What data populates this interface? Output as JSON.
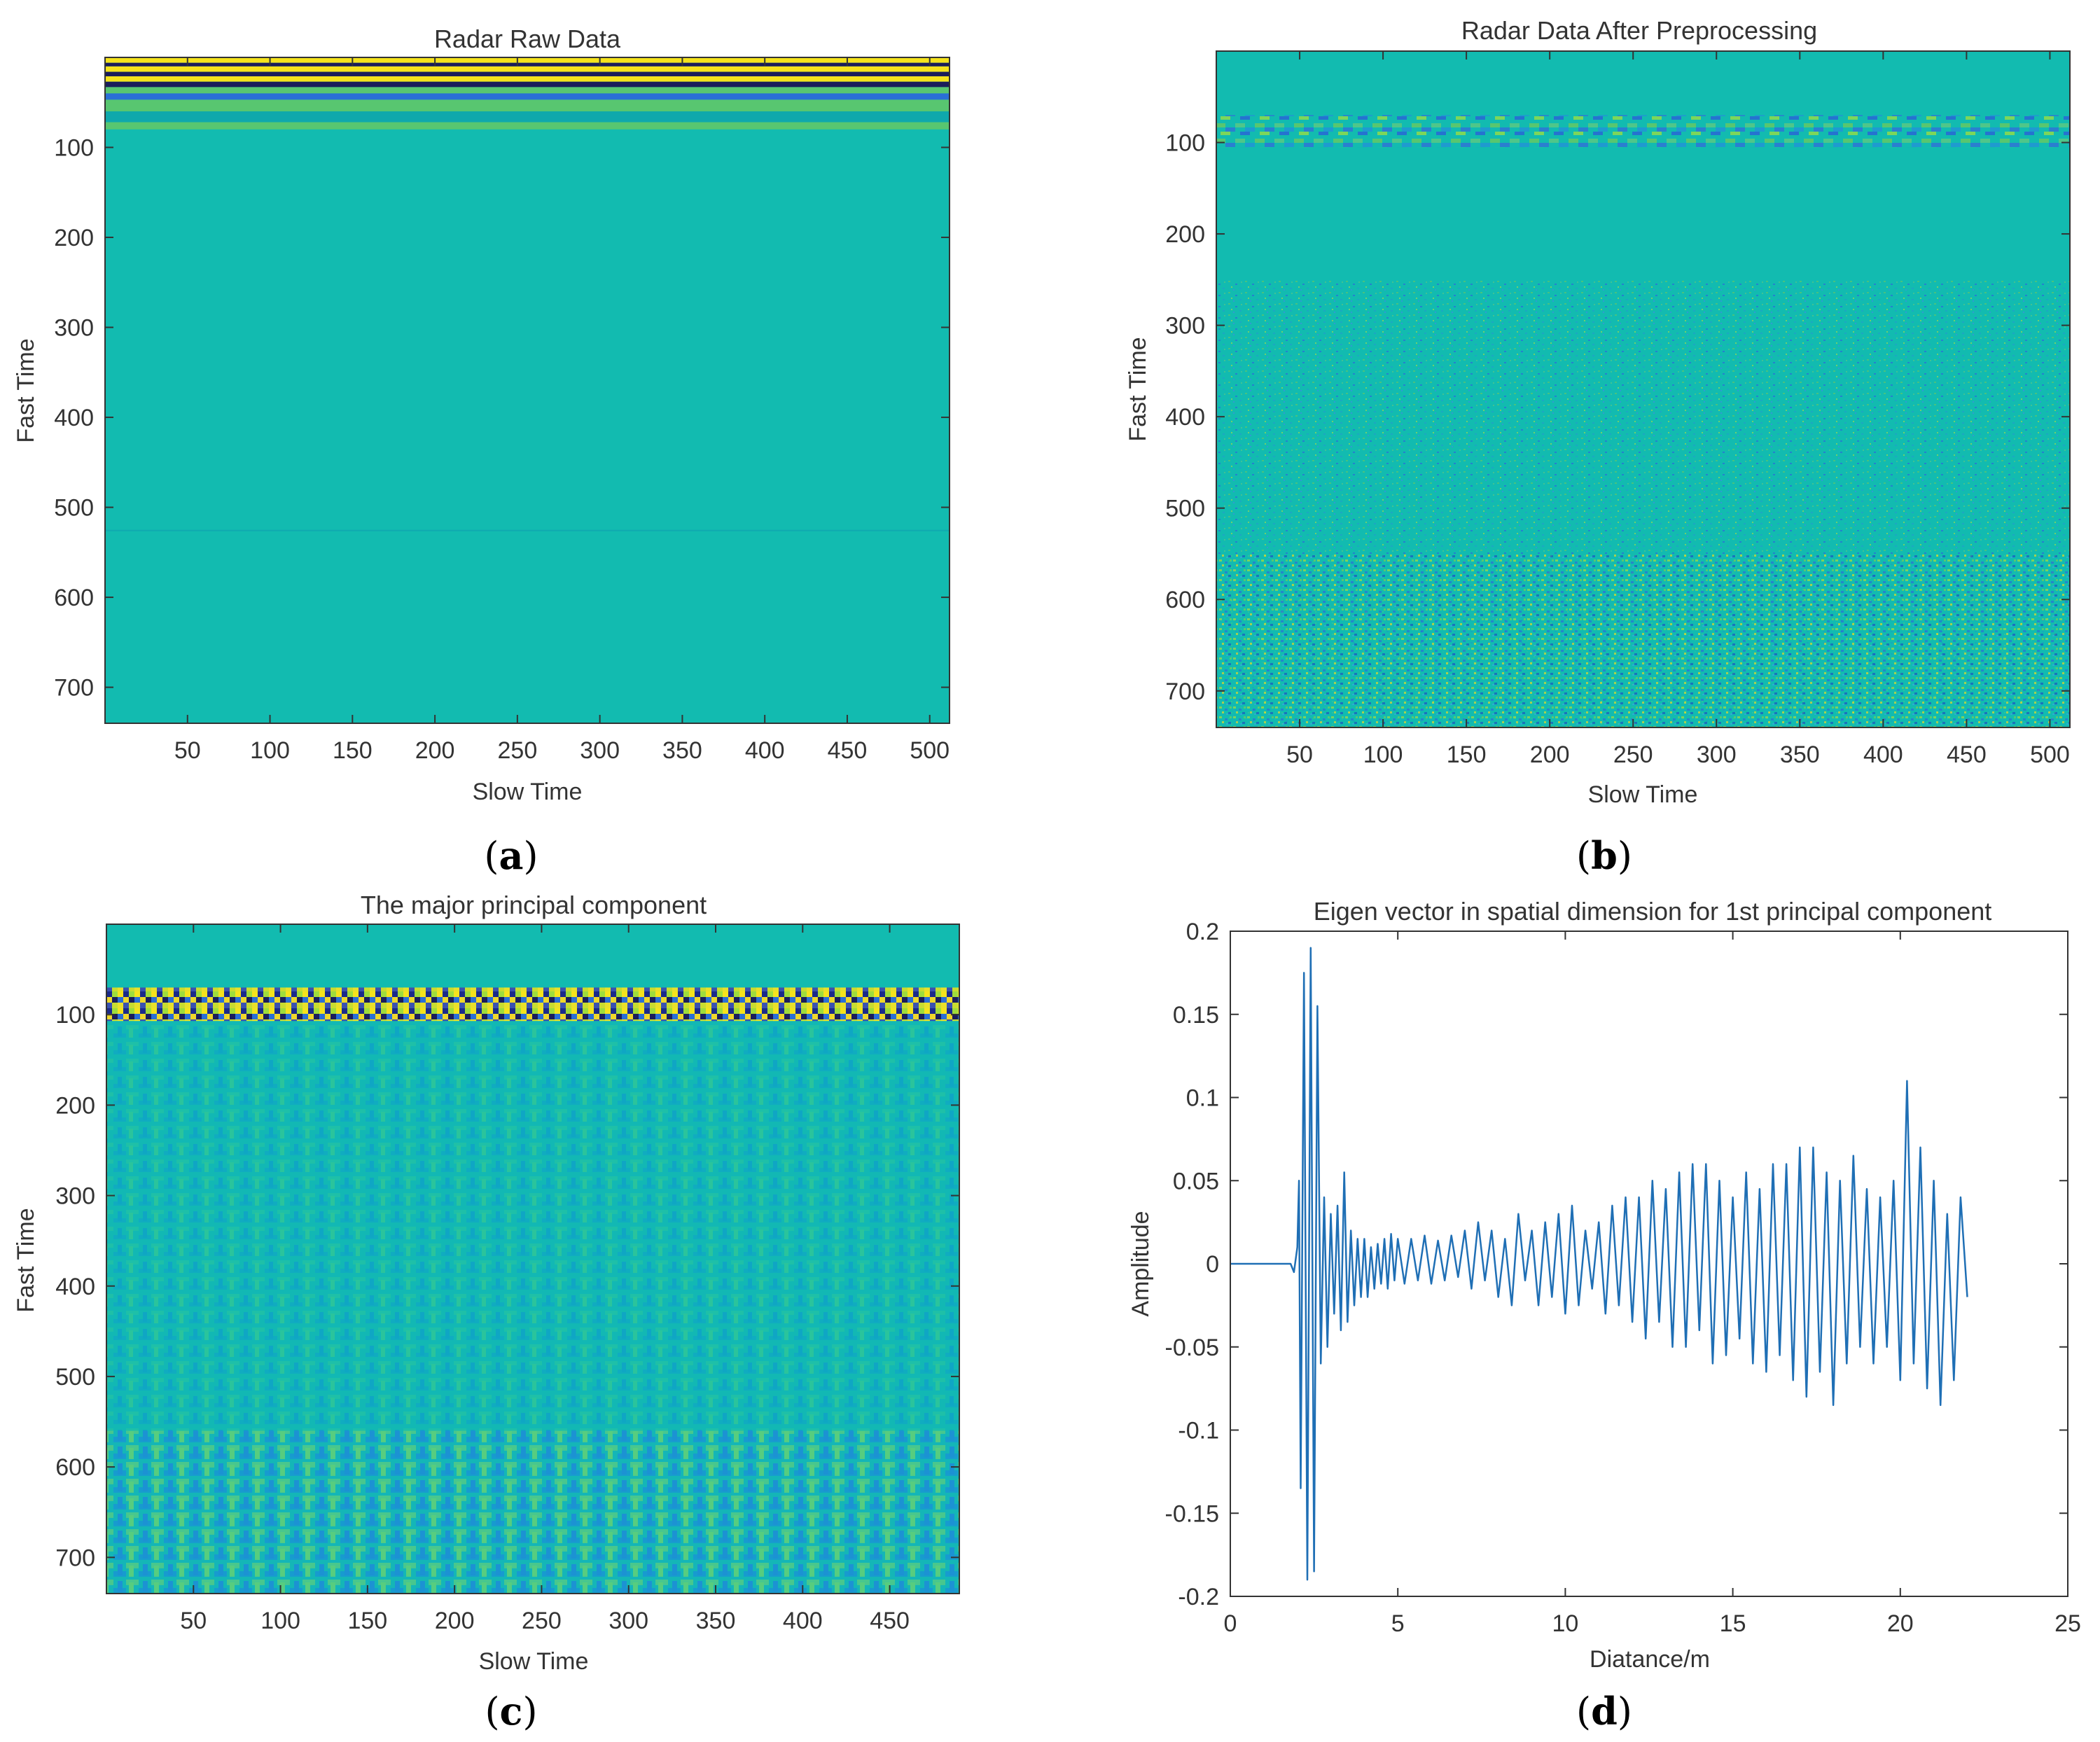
{
  "colors": {
    "teal": "#12bbb0",
    "teal_dark": "#0fa8ac",
    "yellow": "#f5e31c",
    "navy": "#1b1d5a",
    "blue": "#2a6fd6",
    "green": "#58c670",
    "line": "#1f6fb5",
    "axis": "#333333"
  },
  "chart_data": [
    {
      "type": "heatmap",
      "id": "a",
      "title": "Radar Raw Data",
      "xlabel": "Slow Time",
      "ylabel": "Fast Time",
      "xlim": [
        0,
        512
      ],
      "ylim": [
        740,
        0
      ],
      "xticks": [
        50,
        100,
        150,
        200,
        250,
        300,
        350,
        400,
        450,
        500
      ],
      "yticks": [
        100,
        200,
        300,
        400,
        500,
        600,
        700
      ],
      "caption_letter": "a",
      "bands": [
        {
          "from": 0,
          "to": 6,
          "color": "yellow"
        },
        {
          "from": 6,
          "to": 10,
          "color": "navy"
        },
        {
          "from": 10,
          "to": 16,
          "color": "yellow"
        },
        {
          "from": 16,
          "to": 21,
          "color": "navy"
        },
        {
          "from": 21,
          "to": 27,
          "color": "yellow"
        },
        {
          "from": 27,
          "to": 33,
          "color": "navy"
        },
        {
          "from": 33,
          "to": 40,
          "color": "green"
        },
        {
          "from": 40,
          "to": 47,
          "color": "blue"
        },
        {
          "from": 47,
          "to": 60,
          "color": "green"
        },
        {
          "from": 60,
          "to": 72,
          "color": "teal_dark"
        },
        {
          "from": 72,
          "to": 80,
          "color": "green"
        }
      ]
    },
    {
      "type": "heatmap",
      "id": "b",
      "title": "Radar Data After Preprocessing",
      "xlabel": "Slow Time",
      "ylabel": "Fast Time",
      "xlim": [
        0,
        512
      ],
      "ylim": [
        740,
        0
      ],
      "xticks": [
        50,
        100,
        150,
        200,
        250,
        300,
        350,
        400,
        450,
        500
      ],
      "yticks": [
        100,
        200,
        300,
        400,
        500,
        600,
        700
      ],
      "caption_letter": "b",
      "pattern": {
        "band_from": 70,
        "band_to": 105,
        "noise_from": 250,
        "noise_to": 740
      }
    },
    {
      "type": "heatmap",
      "id": "c",
      "title": "The major principal component",
      "xlabel": "Slow Time",
      "ylabel": "Fast Time",
      "xlim": [
        0,
        490
      ],
      "ylim": [
        740,
        0
      ],
      "xticks": [
        50,
        100,
        150,
        200,
        250,
        300,
        350,
        400,
        450
      ],
      "yticks": [
        100,
        200,
        300,
        400,
        500,
        600,
        700
      ],
      "caption_letter": "c",
      "pattern": {
        "band_from": 70,
        "band_to": 107,
        "grid_from": 107,
        "grid_to": 740
      }
    },
    {
      "type": "line",
      "id": "d",
      "title": "Eigen vector in spatial dimension for 1st principal component",
      "xlabel": "Diatance/m",
      "ylabel": "Amplitude",
      "xlim": [
        0,
        25
      ],
      "ylim": [
        -0.2,
        0.2
      ],
      "xticks": [
        0,
        5,
        10,
        15,
        20,
        25
      ],
      "yticks": [
        -0.2,
        -0.15,
        -0.1,
        -0.05,
        0,
        0.05,
        0.1,
        0.15,
        0.2
      ],
      "ytick_labels": [
        "-0.2",
        "-0.15",
        "-0.1",
        "-0.05",
        "0",
        "0.05",
        "0.1",
        "0.15",
        "0.2"
      ],
      "caption_letter": "d",
      "x": [
        0,
        1.8,
        1.9,
        2.0,
        2.05,
        2.1,
        2.2,
        2.3,
        2.4,
        2.5,
        2.6,
        2.7,
        2.8,
        2.9,
        3.0,
        3.1,
        3.2,
        3.3,
        3.4,
        3.5,
        3.6,
        3.7,
        3.8,
        3.9,
        4.0,
        4.1,
        4.2,
        4.3,
        4.4,
        4.5,
        4.6,
        4.7,
        4.8,
        4.9,
        5.0,
        5.2,
        5.4,
        5.6,
        5.8,
        6.0,
        6.2,
        6.4,
        6.6,
        6.8,
        7.0,
        7.2,
        7.4,
        7.6,
        7.8,
        8.0,
        8.2,
        8.4,
        8.6,
        8.8,
        9.0,
        9.2,
        9.4,
        9.6,
        9.8,
        10.0,
        10.2,
        10.4,
        10.6,
        10.8,
        11.0,
        11.2,
        11.4,
        11.6,
        11.8,
        12.0,
        12.2,
        12.4,
        12.6,
        12.8,
        13.0,
        13.2,
        13.4,
        13.6,
        13.8,
        14.0,
        14.2,
        14.4,
        14.6,
        14.8,
        15.0,
        15.2,
        15.4,
        15.6,
        15.8,
        16.0,
        16.2,
        16.4,
        16.6,
        16.8,
        17.0,
        17.2,
        17.4,
        17.6,
        17.8,
        18.0,
        18.2,
        18.4,
        18.6,
        18.8,
        19.0,
        19.2,
        19.4,
        19.6,
        19.8,
        20.0,
        20.2,
        20.4,
        20.6,
        20.8,
        21.0,
        21.2,
        21.4,
        21.6,
        21.8,
        22.0
      ],
      "y": [
        0,
        0,
        -0.005,
        0.01,
        0.05,
        -0.135,
        0.175,
        -0.19,
        0.19,
        -0.185,
        0.155,
        -0.06,
        0.04,
        -0.05,
        0.03,
        -0.03,
        0.035,
        -0.04,
        0.055,
        -0.035,
        0.02,
        -0.025,
        0.015,
        -0.02,
        0.015,
        -0.02,
        0.01,
        -0.015,
        0.012,
        -0.012,
        0.015,
        -0.015,
        0.018,
        -0.01,
        0.015,
        -0.012,
        0.015,
        -0.01,
        0.017,
        -0.012,
        0.014,
        -0.01,
        0.017,
        -0.008,
        0.02,
        -0.015,
        0.025,
        -0.01,
        0.02,
        -0.02,
        0.015,
        -0.025,
        0.03,
        -0.01,
        0.02,
        -0.025,
        0.025,
        -0.02,
        0.03,
        -0.03,
        0.035,
        -0.025,
        0.02,
        -0.015,
        0.025,
        -0.03,
        0.035,
        -0.025,
        0.04,
        -0.035,
        0.04,
        -0.045,
        0.05,
        -0.035,
        0.045,
        -0.05,
        0.055,
        -0.05,
        0.06,
        -0.04,
        0.06,
        -0.06,
        0.05,
        -0.055,
        0.04,
        -0.045,
        0.055,
        -0.06,
        0.045,
        -0.065,
        0.06,
        -0.055,
        0.06,
        -0.07,
        0.07,
        -0.08,
        0.07,
        -0.065,
        0.055,
        -0.085,
        0.05,
        -0.06,
        0.065,
        -0.05,
        0.045,
        -0.06,
        0.04,
        -0.05,
        0.05,
        -0.07,
        0.11,
        -0.06,
        0.07,
        -0.075,
        0.05,
        -0.085,
        0.03,
        -0.07,
        0.04,
        -0.02
      ]
    }
  ],
  "captions": {
    "a": "a",
    "b": "b",
    "c": "c",
    "d": "d"
  }
}
